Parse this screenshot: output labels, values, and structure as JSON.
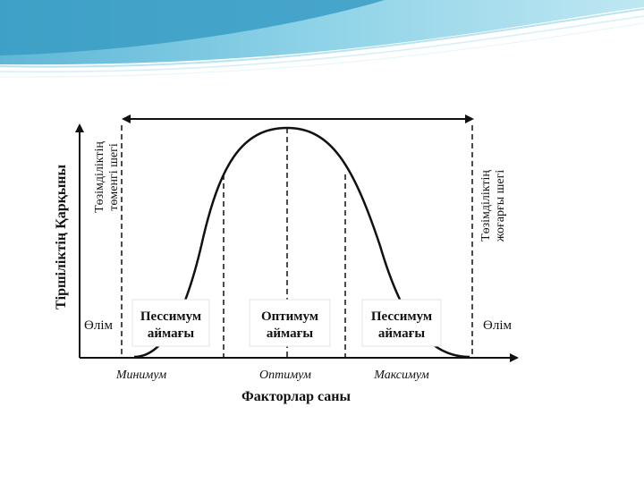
{
  "diagram": {
    "y_axis_label": "Тіршіліктің Қарқыны",
    "x_axis_label": "Факторлар саны",
    "x_ticks": [
      "Минимум",
      "Оптимум",
      "Максимум"
    ],
    "left_limit_label": [
      "Төзімділіктің",
      "төменгі шегі"
    ],
    "right_limit_label": [
      "Төзімділіктің",
      "жоғарғы шегі"
    ],
    "death_left": "Өлім",
    "death_right": "Өлім",
    "zones": [
      {
        "line1": "Пессимум",
        "line2": "аймағы"
      },
      {
        "line1": "Оптимум",
        "line2": "аймағы"
      },
      {
        "line1": "Пессимум",
        "line2": "аймағы"
      }
    ]
  },
  "colors": {
    "header_wave_dark": "#2e8fb8",
    "header_wave_light": "#8fd0e6",
    "ink": "#111111"
  }
}
